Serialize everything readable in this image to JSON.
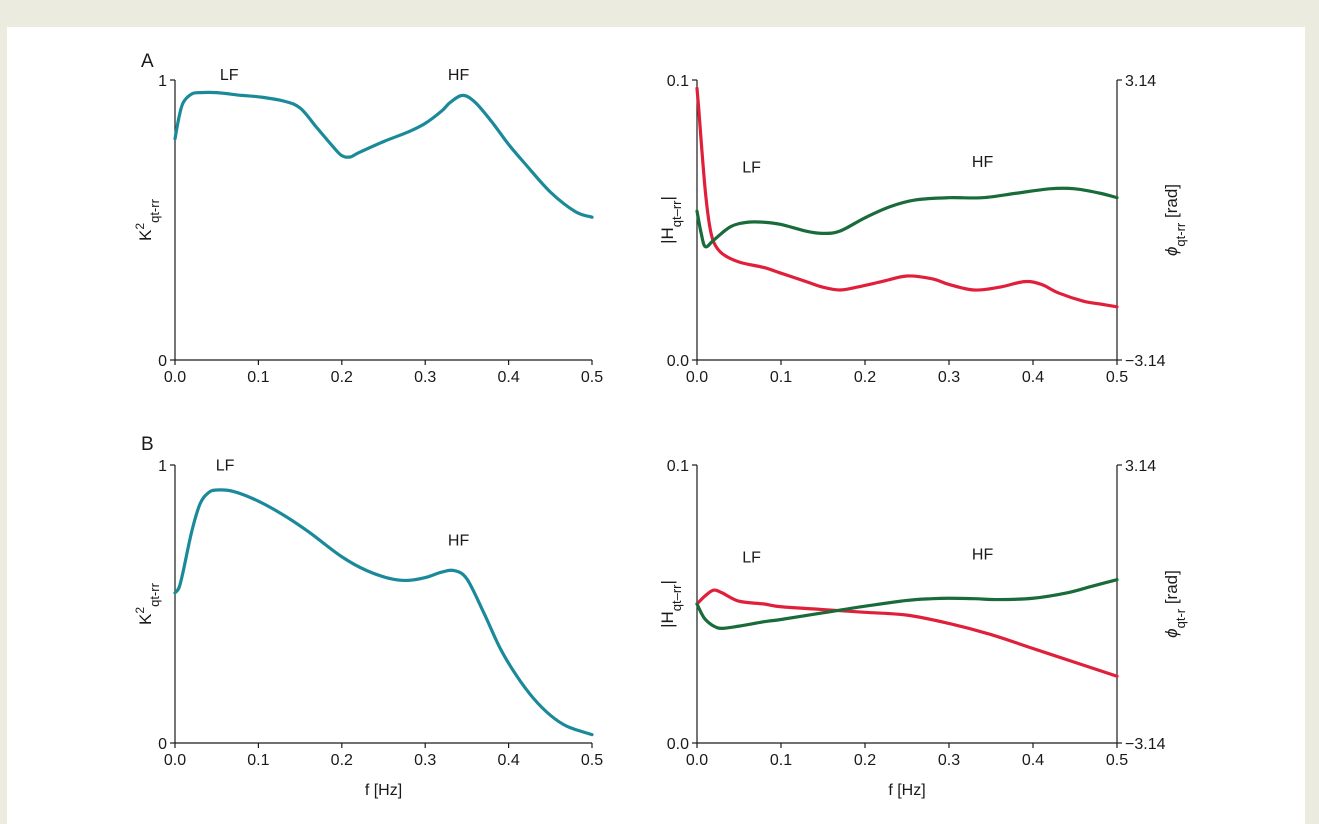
{
  "colors": {
    "background": "#ecebe0",
    "panel": "#ffffff",
    "coherence": "#1a8a9a",
    "gain": "#e0203a",
    "phase": "#1a6b3a"
  },
  "panel_labels": [
    "A",
    "B"
  ],
  "chart_data": [
    {
      "id": "A-left",
      "type": "line",
      "xlabel": "",
      "ylabel": "K²qt-rr",
      "ylabel_main": "K",
      "ylabel_sup": "2",
      "ylabel_sub": "qt-rr",
      "xlim": [
        0,
        0.5
      ],
      "ylim": [
        0,
        1
      ],
      "xticks": [
        "0.0",
        "0.1",
        "0.2",
        "0.3",
        "0.4",
        "0.5"
      ],
      "yticks": [
        "0",
        "1"
      ],
      "annotations": [
        {
          "text": "LF",
          "x": 0.065,
          "y": 1.0
        },
        {
          "text": "HF",
          "x": 0.34,
          "y": 1.0
        }
      ],
      "series": [
        {
          "color": "#1a8a9a",
          "x": [
            0,
            0.005,
            0.01,
            0.02,
            0.03,
            0.05,
            0.08,
            0.1,
            0.13,
            0.15,
            0.17,
            0.19,
            0.2,
            0.21,
            0.22,
            0.25,
            0.28,
            0.3,
            0.32,
            0.33,
            0.345,
            0.36,
            0.38,
            0.4,
            0.42,
            0.45,
            0.48,
            0.5
          ],
          "y": [
            0.79,
            0.87,
            0.92,
            0.95,
            0.955,
            0.955,
            0.945,
            0.94,
            0.925,
            0.9,
            0.83,
            0.76,
            0.73,
            0.725,
            0.74,
            0.78,
            0.815,
            0.845,
            0.89,
            0.92,
            0.945,
            0.92,
            0.85,
            0.77,
            0.7,
            0.6,
            0.53,
            0.51
          ]
        }
      ]
    },
    {
      "id": "A-right",
      "type": "line",
      "xlabel": "",
      "ylabel": "|Hqt–rr|",
      "ylabel_main": "|H",
      "ylabel_sub": "qt–rr",
      "ylabel_end": "|",
      "y2label": "ϕqt-rr [rad]",
      "y2label_main": "ϕ",
      "y2label_sub": "qt-rr",
      "y2label_end": " [rad]",
      "xlim": [
        0,
        0.5
      ],
      "ylim": [
        0,
        0.1
      ],
      "y2lim": [
        -3.14,
        3.14
      ],
      "xticks": [
        "0.0",
        "0.1",
        "0.2",
        "0.3",
        "0.4",
        "0.5"
      ],
      "yticks": [
        "0.0",
        "0.1"
      ],
      "y2ticks": [
        "−3.14",
        "3.14"
      ],
      "annotations": [
        {
          "text": "LF",
          "x": 0.065,
          "y": 0.067
        },
        {
          "text": "HF",
          "x": 0.34,
          "y": 0.069
        }
      ],
      "series": [
        {
          "axis": "left",
          "color": "#e0203a",
          "x": [
            0,
            0.002,
            0.005,
            0.01,
            0.015,
            0.02,
            0.03,
            0.05,
            0.08,
            0.1,
            0.13,
            0.15,
            0.17,
            0.19,
            0.22,
            0.25,
            0.28,
            0.3,
            0.33,
            0.36,
            0.39,
            0.41,
            0.43,
            0.46,
            0.48,
            0.5
          ],
          "y": [
            0.097,
            0.09,
            0.078,
            0.06,
            0.048,
            0.042,
            0.038,
            0.035,
            0.033,
            0.031,
            0.028,
            0.026,
            0.025,
            0.026,
            0.028,
            0.03,
            0.029,
            0.027,
            0.025,
            0.026,
            0.028,
            0.027,
            0.024,
            0.021,
            0.02,
            0.019
          ]
        },
        {
          "axis": "right",
          "color": "#1a6b3a",
          "x": [
            0,
            0.005,
            0.01,
            0.02,
            0.04,
            0.06,
            0.08,
            0.1,
            0.13,
            0.15,
            0.17,
            0.2,
            0.23,
            0.26,
            0.3,
            0.34,
            0.38,
            0.42,
            0.45,
            0.48,
            0.5
          ],
          "y": [
            0.2,
            -0.3,
            -0.6,
            -0.45,
            -0.15,
            -0.05,
            -0.05,
            -0.1,
            -0.25,
            -0.3,
            -0.25,
            0.05,
            0.3,
            0.45,
            0.5,
            0.5,
            0.6,
            0.7,
            0.7,
            0.6,
            0.5
          ]
        }
      ]
    },
    {
      "id": "B-left",
      "type": "line",
      "xlabel": "f [Hz]",
      "ylabel": "K²qt-rr",
      "ylabel_main": "K",
      "ylabel_sup": "2",
      "ylabel_sub": "qt-rr",
      "xlim": [
        0,
        0.5
      ],
      "ylim": [
        0,
        1
      ],
      "xticks": [
        "0.0",
        "0.1",
        "0.2",
        "0.3",
        "0.4",
        "0.5"
      ],
      "yticks": [
        "0",
        "1"
      ],
      "annotations": [
        {
          "text": "LF",
          "x": 0.06,
          "y": 0.98
        },
        {
          "text": "HF",
          "x": 0.34,
          "y": 0.71
        }
      ],
      "series": [
        {
          "color": "#1a8a9a",
          "x": [
            0,
            0.005,
            0.01,
            0.02,
            0.03,
            0.04,
            0.05,
            0.07,
            0.1,
            0.13,
            0.16,
            0.2,
            0.23,
            0.26,
            0.28,
            0.3,
            0.32,
            0.335,
            0.35,
            0.37,
            0.39,
            0.41,
            0.43,
            0.45,
            0.47,
            0.5
          ],
          "y": [
            0.54,
            0.56,
            0.62,
            0.76,
            0.86,
            0.9,
            0.91,
            0.905,
            0.87,
            0.82,
            0.76,
            0.67,
            0.62,
            0.59,
            0.585,
            0.595,
            0.615,
            0.62,
            0.59,
            0.47,
            0.34,
            0.24,
            0.16,
            0.1,
            0.06,
            0.03
          ]
        }
      ]
    },
    {
      "id": "B-right",
      "type": "line",
      "xlabel": "f [Hz]",
      "ylabel": "|Hqt–rr|",
      "ylabel_main": "|H",
      "ylabel_sub": "qt–rr",
      "ylabel_end": "|",
      "y2label": "ϕqt-r [rad]",
      "y2label_main": "ϕ",
      "y2label_sub": "qt-r",
      "y2label_end": " [rad]",
      "xlim": [
        0,
        0.5
      ],
      "ylim": [
        0,
        0.1
      ],
      "y2lim": [
        -3.14,
        3.14
      ],
      "xticks": [
        "0.0",
        "0.1",
        "0.2",
        "0.3",
        "0.4",
        "0.5"
      ],
      "yticks": [
        "0.0",
        "0.1"
      ],
      "y2ticks": [
        "−3.14",
        "3.14"
      ],
      "annotations": [
        {
          "text": "LF",
          "x": 0.065,
          "y": 0.065
        },
        {
          "text": "HF",
          "x": 0.34,
          "y": 0.066
        }
      ],
      "series": [
        {
          "axis": "left",
          "color": "#e0203a",
          "x": [
            0,
            0.01,
            0.02,
            0.03,
            0.05,
            0.08,
            0.1,
            0.15,
            0.2,
            0.25,
            0.3,
            0.35,
            0.4,
            0.45,
            0.5
          ],
          "y": [
            0.05,
            0.053,
            0.055,
            0.054,
            0.051,
            0.05,
            0.049,
            0.048,
            0.047,
            0.046,
            0.043,
            0.039,
            0.034,
            0.029,
            0.024
          ]
        },
        {
          "axis": "right",
          "color": "#1a6b3a",
          "x": [
            0,
            0.005,
            0.01,
            0.02,
            0.03,
            0.05,
            0.08,
            0.1,
            0.15,
            0.2,
            0.25,
            0.28,
            0.3,
            0.33,
            0.36,
            0.4,
            0.44,
            0.47,
            0.5
          ],
          "y": [
            0.0,
            -0.2,
            -0.35,
            -0.5,
            -0.55,
            -0.5,
            -0.4,
            -0.35,
            -0.2,
            -0.05,
            0.08,
            0.12,
            0.13,
            0.12,
            0.1,
            0.13,
            0.25,
            0.4,
            0.55
          ]
        }
      ]
    }
  ]
}
